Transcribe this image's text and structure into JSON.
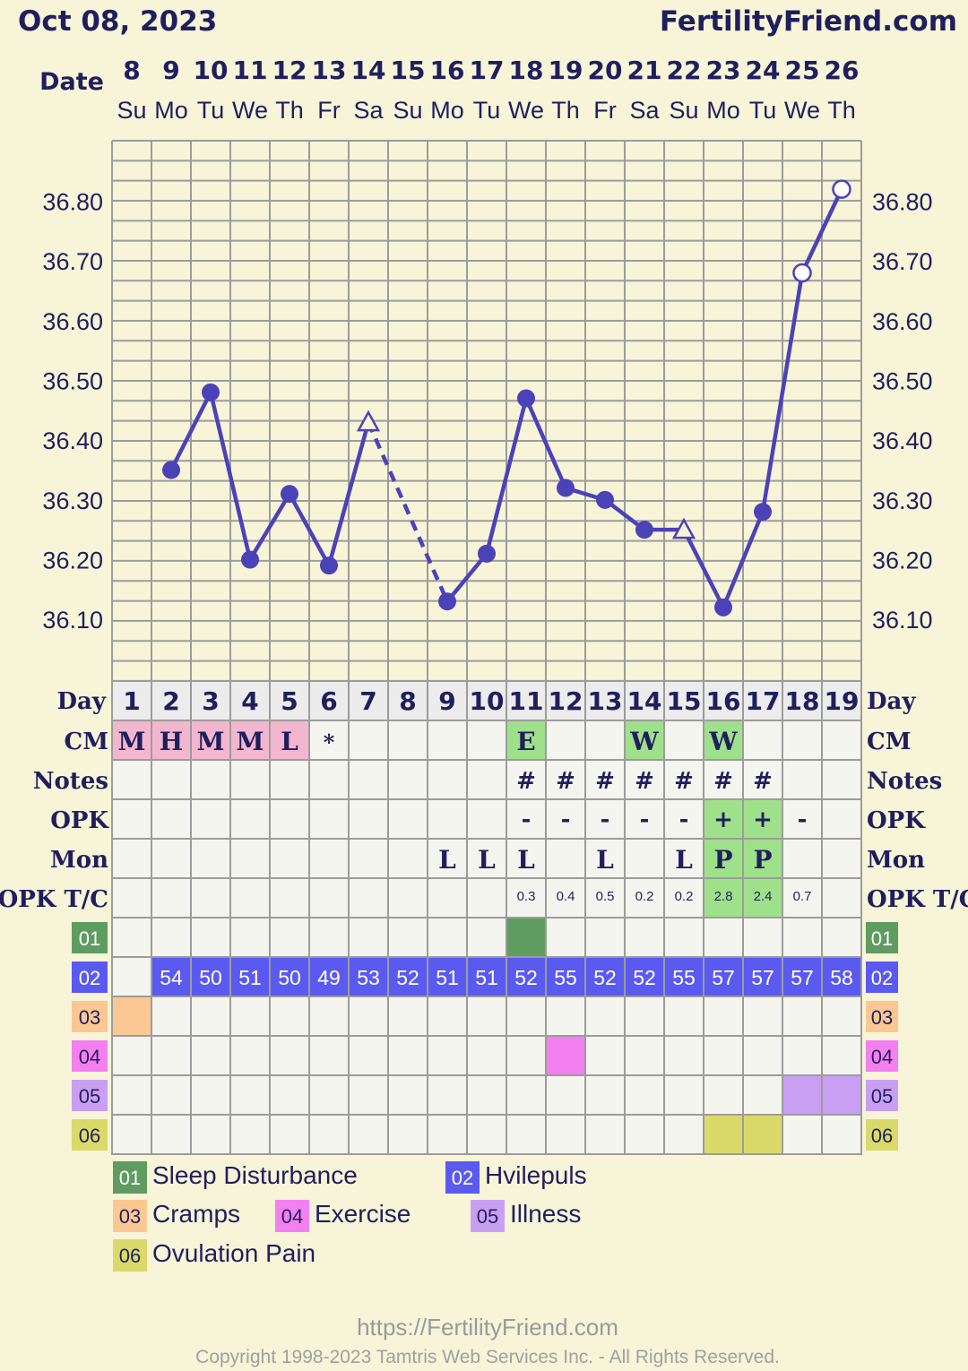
{
  "header": {
    "date": "Oct 08, 2023",
    "site": "FertilityFriend.com"
  },
  "labels": {
    "date": "Date",
    "day": "Day",
    "cm": "CM",
    "notes": "Notes",
    "opk": "OPK",
    "mon": "Mon",
    "opk_tc": "OPK T/C"
  },
  "columns": {
    "dates": [
      "8",
      "9",
      "10",
      "11",
      "12",
      "13",
      "14",
      "15",
      "16",
      "17",
      "18",
      "19",
      "20",
      "21",
      "22",
      "23",
      "24",
      "25",
      "26"
    ],
    "weekdays": [
      "Su",
      "Mo",
      "Tu",
      "We",
      "Th",
      "Fr",
      "Sa",
      "Su",
      "Mo",
      "Tu",
      "We",
      "Th",
      "Fr",
      "Sa",
      "Su",
      "Mo",
      "Tu",
      "We",
      "Th"
    ],
    "cycle_days": [
      "1",
      "2",
      "3",
      "4",
      "5",
      "6",
      "7",
      "8",
      "9",
      "10",
      "11",
      "12",
      "13",
      "14",
      "15",
      "16",
      "17",
      "18",
      "19"
    ]
  },
  "chart_data": {
    "type": "line",
    "title": "",
    "y_tick_labels": [
      "36.80",
      "36.70",
      "36.60",
      "36.50",
      "36.40",
      "36.30",
      "36.20",
      "36.10"
    ],
    "ylim": [
      36.0,
      36.95
    ],
    "x": [
      "1",
      "2",
      "3",
      "4",
      "5",
      "6",
      "7",
      "8",
      "9",
      "10",
      "11",
      "12",
      "13",
      "14",
      "15",
      "16",
      "17",
      "18",
      "19"
    ],
    "temps": [
      null,
      36.35,
      36.48,
      36.2,
      36.31,
      36.19,
      36.43,
      null,
      36.13,
      36.21,
      36.47,
      36.32,
      36.3,
      36.25,
      36.25,
      36.12,
      36.28,
      36.68,
      36.82
    ],
    "marker": [
      "",
      "dot",
      "dot",
      "dot",
      "dot",
      "dot",
      "triangle",
      "",
      "dot",
      "dot",
      "dot",
      "dot",
      "dot",
      "dot",
      "triangle",
      "dot",
      "dot",
      "open",
      "open"
    ],
    "line_color": "#4b42b8",
    "grid": true
  },
  "rows": {
    "cm": [
      "M",
      "H",
      "M",
      "M",
      "L",
      "*",
      "",
      "",
      "",
      "",
      "E",
      "",
      "",
      "W",
      "",
      "W",
      "",
      "",
      ""
    ],
    "notes": [
      "",
      "",
      "",
      "",
      "",
      "",
      "",
      "",
      "",
      "",
      "#",
      "#",
      "#",
      "#",
      "#",
      "#",
      "#",
      "",
      ""
    ],
    "opk": [
      "",
      "",
      "",
      "",
      "",
      "",
      "",
      "",
      "",
      "",
      "-",
      "-",
      "-",
      "-",
      "-",
      "+",
      "+",
      "-",
      ""
    ],
    "mon": [
      "",
      "",
      "",
      "",
      "",
      "",
      "",
      "",
      "L",
      "L",
      "L",
      "",
      "L",
      "",
      "L",
      "P",
      "P",
      "",
      ""
    ],
    "opk_tc": [
      "",
      "",
      "",
      "",
      "",
      "",
      "",
      "",
      "",
      "",
      "0.3",
      "0.4",
      "0.5",
      "0.2",
      "0.2",
      "2.8",
      "2.4",
      "0.7",
      ""
    ],
    "r02": [
      "",
      "54",
      "50",
      "51",
      "50",
      "49",
      "53",
      "52",
      "51",
      "51",
      "52",
      "55",
      "52",
      "52",
      "55",
      "57",
      "57",
      "57",
      "58"
    ]
  },
  "custom_rows": [
    {
      "code": "01",
      "color": "#5f9c5f",
      "cells": [
        10
      ]
    },
    {
      "code": "02",
      "color": "#5a5af0",
      "cells": []
    },
    {
      "code": "03",
      "color": "#fbc792",
      "cells": [
        0
      ]
    },
    {
      "code": "04",
      "color": "#f47ff0",
      "cells": [
        11
      ]
    },
    {
      "code": "05",
      "color": "#c99ff3",
      "cells": [
        17,
        18
      ]
    },
    {
      "code": "06",
      "color": "#dada6a",
      "cells": [
        15,
        16
      ]
    }
  ],
  "colors": {
    "background": "#f7f4d8",
    "cm_dry": "#f3b6cf",
    "cm_fertile": "#9fe08a",
    "opk_positive": "#9fe08a",
    "row02_fill": "#5a5af0",
    "label_navy": "#1f1f5e"
  },
  "legend": {
    "items": [
      {
        "code": "01",
        "label": "Sleep Disturbance"
      },
      {
        "code": "02",
        "label": "Hvilepuls"
      },
      {
        "code": "03",
        "label": "Cramps"
      },
      {
        "code": "04",
        "label": "Exercise"
      },
      {
        "code": "05",
        "label": "Illness"
      },
      {
        "code": "06",
        "label": "Ovulation Pain"
      }
    ]
  },
  "footer": {
    "url": "https://FertilityFriend.com",
    "copyright": "Copyright 1998-2023 Tamtris Web Services Inc. - All Rights Reserved."
  }
}
